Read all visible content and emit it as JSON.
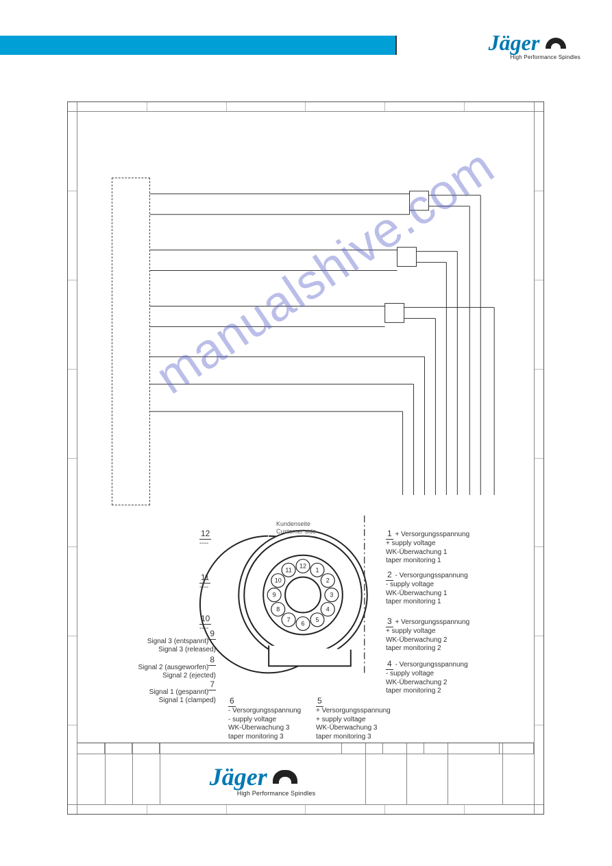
{
  "brand": {
    "name": "Jäger",
    "tagline": "High Performance Spindles",
    "color": "#0079b1"
  },
  "watermark": "manualshive.com",
  "header_bar_color": "#009fd6",
  "connector": {
    "header_de": "Kundenseite",
    "header_en": "Customer side",
    "pins": {
      "p1": {
        "num": "1",
        "lines": [
          "+ Versorgungsspannung",
          "+ supply voltage",
          "WK-Überwachung 1",
          "taper monitoring 1"
        ]
      },
      "p2": {
        "num": "2",
        "lines": [
          "- Versorgungsspannung",
          "- supply voltage",
          "WK-Überwachung 1",
          "taper monitoring 1"
        ]
      },
      "p3": {
        "num": "3",
        "lines": [
          "+ Versorgungsspannung",
          "+ supply voltage",
          "WK-Überwachung 2",
          "taper monitoring 2"
        ]
      },
      "p4": {
        "num": "4",
        "lines": [
          "- Versorgungsspannung",
          "- supply voltage",
          "WK-Überwachung 2",
          "taper monitoring 2"
        ]
      },
      "p5": {
        "num": "5",
        "lines": [
          "+ Versorgungsspannung",
          "+ supply voltage",
          "WK-Überwachung 3",
          "taper monitoring 3"
        ]
      },
      "p6": {
        "num": "6",
        "lines": [
          "- Versorgungsspannung",
          "- supply voltage",
          "WK-Überwachung 3",
          "taper monitoring 3"
        ]
      },
      "p7": {
        "num": "7",
        "lines": [
          "Signal 1 (gespannt)",
          "Signal 1 (clamped)"
        ]
      },
      "p8": {
        "num": "8",
        "lines": [
          "Signal 2 (ausgeworfen)",
          "Signal 2 (ejected)"
        ]
      },
      "p9": {
        "num": "9",
        "lines": [
          "Signal 3 (entspannt)",
          "Signal 3 (released)"
        ]
      },
      "p10": {
        "num": "10",
        "lines": []
      },
      "p11": {
        "num": "11",
        "lines": []
      },
      "p12": {
        "num": "12",
        "lines": []
      }
    }
  },
  "wiring": {
    "terminal_pin_count": 12,
    "sensor_blocks": 3,
    "line_color": "#333333"
  },
  "frame": {
    "border_color": "#555555",
    "grid_color": "#bbbbbb"
  }
}
